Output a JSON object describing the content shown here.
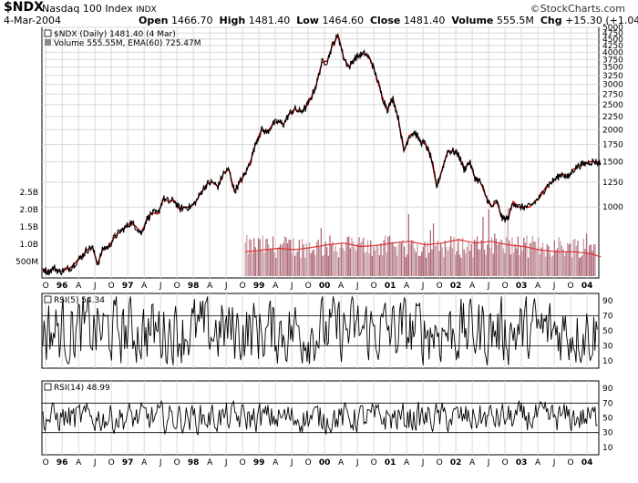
{
  "header": {
    "ticker": "$NDX",
    "name": "Nasdaq 100 Index",
    "exchange": "INDX",
    "date": "4-Mar-2004",
    "open_label": "Open",
    "open": "1466.70",
    "high_label": "High",
    "high": "1481.40",
    "low_label": "Low",
    "low": "1464.60",
    "close_label": "Close",
    "close": "1481.40",
    "volume_label": "Volume",
    "volume": "555.5M",
    "chg_label": "Chg",
    "chg": "+15.30 (+1.04%)",
    "brand": "©StockCharts.com"
  },
  "legend": {
    "price": "$NDX (Daily) 1481.40 (4 Mar)",
    "volume": "Volume 555.55M, EMA(60) 725.47M",
    "rsi5": "RSI(5) 54.34",
    "rsi14": "RSI(14) 48.99"
  },
  "colors": {
    "price": "#000000",
    "ma": "#cc0000",
    "volume_bar": "#b06a78",
    "volume_bar_light": "#c8a0a8",
    "volume_ema": "#e03030",
    "grid": "#d8d8d8",
    "axis": "#000000"
  },
  "chart_data": [
    {
      "type": "line",
      "panel": "price",
      "title": "$NDX (Daily) 1481.40 (4 Mar)",
      "yscale": "log",
      "ylim": [
        530,
        5000
      ],
      "yticks": [
        5000,
        4750,
        4500,
        4250,
        4000,
        3750,
        3500,
        3250,
        3000,
        2750,
        2500,
        2250,
        2000,
        1750,
        1500,
        1250,
        1000
      ],
      "volume_ticks": [
        "2.5B",
        "2.0B",
        "1.5B",
        "1.0B",
        "500M"
      ],
      "x_month_labels": [
        "O",
        "96",
        "A",
        "J",
        "O",
        "97",
        "A",
        "J",
        "O",
        "98",
        "A",
        "J",
        "O",
        "99",
        "A",
        "J",
        "O",
        "00",
        "A",
        "J",
        "O",
        "01",
        "A",
        "J",
        "O",
        "02",
        "A",
        "J",
        "O",
        "03",
        "A",
        "J",
        "O",
        "04"
      ],
      "series": [
        {
          "name": "$NDX",
          "x": [
            "1995-09",
            "1995-10",
            "1995-11",
            "1995-12",
            "1996-01",
            "1996-02",
            "1996-03",
            "1996-04",
            "1996-05",
            "1996-06",
            "1996-07",
            "1996-08",
            "1996-09",
            "1996-10",
            "1996-11",
            "1996-12",
            "1997-01",
            "1997-02",
            "1997-03",
            "1997-04",
            "1997-05",
            "1997-06",
            "1997-07",
            "1997-08",
            "1997-09",
            "1997-10",
            "1997-11",
            "1997-12",
            "1998-01",
            "1998-02",
            "1998-03",
            "1998-04",
            "1998-05",
            "1998-06",
            "1998-07",
            "1998-08",
            "1998-09",
            "1998-10",
            "1998-11",
            "1998-12",
            "1999-01",
            "1999-02",
            "1999-03",
            "1999-04",
            "1999-05",
            "1999-06",
            "1999-07",
            "1999-08",
            "1999-09",
            "1999-10",
            "1999-11",
            "1999-12",
            "2000-01",
            "2000-02",
            "2000-03",
            "2000-04",
            "2000-05",
            "2000-06",
            "2000-07",
            "2000-08",
            "2000-09",
            "2000-10",
            "2000-11",
            "2000-12",
            "2001-01",
            "2001-02",
            "2001-03",
            "2001-04",
            "2001-05",
            "2001-06",
            "2001-07",
            "2001-08",
            "2001-09",
            "2001-10",
            "2001-11",
            "2001-12",
            "2002-01",
            "2002-02",
            "2002-03",
            "2002-04",
            "2002-05",
            "2002-06",
            "2002-07",
            "2002-08",
            "2002-09",
            "2002-10",
            "2002-11",
            "2002-12",
            "2003-01",
            "2003-02",
            "2003-03",
            "2003-04",
            "2003-05",
            "2003-06",
            "2003-07",
            "2003-08",
            "2003-09",
            "2003-10",
            "2003-11",
            "2003-12",
            "2004-01",
            "2004-02",
            "2004-03"
          ],
          "values": [
            575,
            560,
            580,
            560,
            570,
            580,
            610,
            640,
            680,
            700,
            600,
            690,
            700,
            760,
            800,
            830,
            870,
            840,
            790,
            900,
            950,
            940,
            1080,
            1050,
            1060,
            980,
            1000,
            1000,
            1050,
            1150,
            1230,
            1250,
            1200,
            1350,
            1400,
            1150,
            1250,
            1350,
            1520,
            1800,
            2000,
            1950,
            2100,
            2150,
            2100,
            2300,
            2400,
            2350,
            2420,
            2650,
            3000,
            3650,
            3700,
            4300,
            4650,
            3800,
            3500,
            3800,
            3900,
            3950,
            3700,
            3200,
            2700,
            2400,
            2650,
            2200,
            1650,
            1900,
            1950,
            1800,
            1750,
            1550,
            1200,
            1400,
            1650,
            1650,
            1600,
            1400,
            1500,
            1300,
            1250,
            1100,
            1000,
            1050,
            900,
            900,
            1050,
            1000,
            1000,
            1000,
            1050,
            1100,
            1200,
            1250,
            1300,
            1350,
            1300,
            1400,
            1450,
            1470,
            1500,
            1500,
            1481
          ]
        },
        {
          "name": "Volume (M)",
          "x": [
            "1998-10",
            "1999-01",
            "1999-04",
            "1999-07",
            "1999-10",
            "2000-01",
            "2000-04",
            "2000-07",
            "2000-10",
            "2001-01",
            "2001-04",
            "2001-07",
            "2001-10",
            "2002-01",
            "2002-04",
            "2002-07",
            "2002-10",
            "2003-01",
            "2003-04",
            "2003-07",
            "2003-10",
            "2004-01",
            "2004-03"
          ],
          "values": [
            700,
            750,
            800,
            760,
            820,
            900,
            950,
            850,
            880,
            950,
            1000,
            900,
            950,
            1050,
            950,
            1000,
            900,
            850,
            750,
            700,
            700,
            650,
            555
          ]
        }
      ]
    },
    {
      "type": "line",
      "panel": "rsi5",
      "title": "RSI(5) 54.34",
      "ylim": [
        0,
        100
      ],
      "yticks": [
        90,
        70,
        50,
        30,
        10
      ],
      "reference_lines": [
        70,
        30
      ]
    },
    {
      "type": "line",
      "panel": "rsi14",
      "title": "RSI(14) 48.99",
      "ylim": [
        0,
        100
      ],
      "yticks": [
        90,
        70,
        50,
        30,
        10
      ],
      "reference_lines": [
        70,
        30
      ]
    }
  ]
}
